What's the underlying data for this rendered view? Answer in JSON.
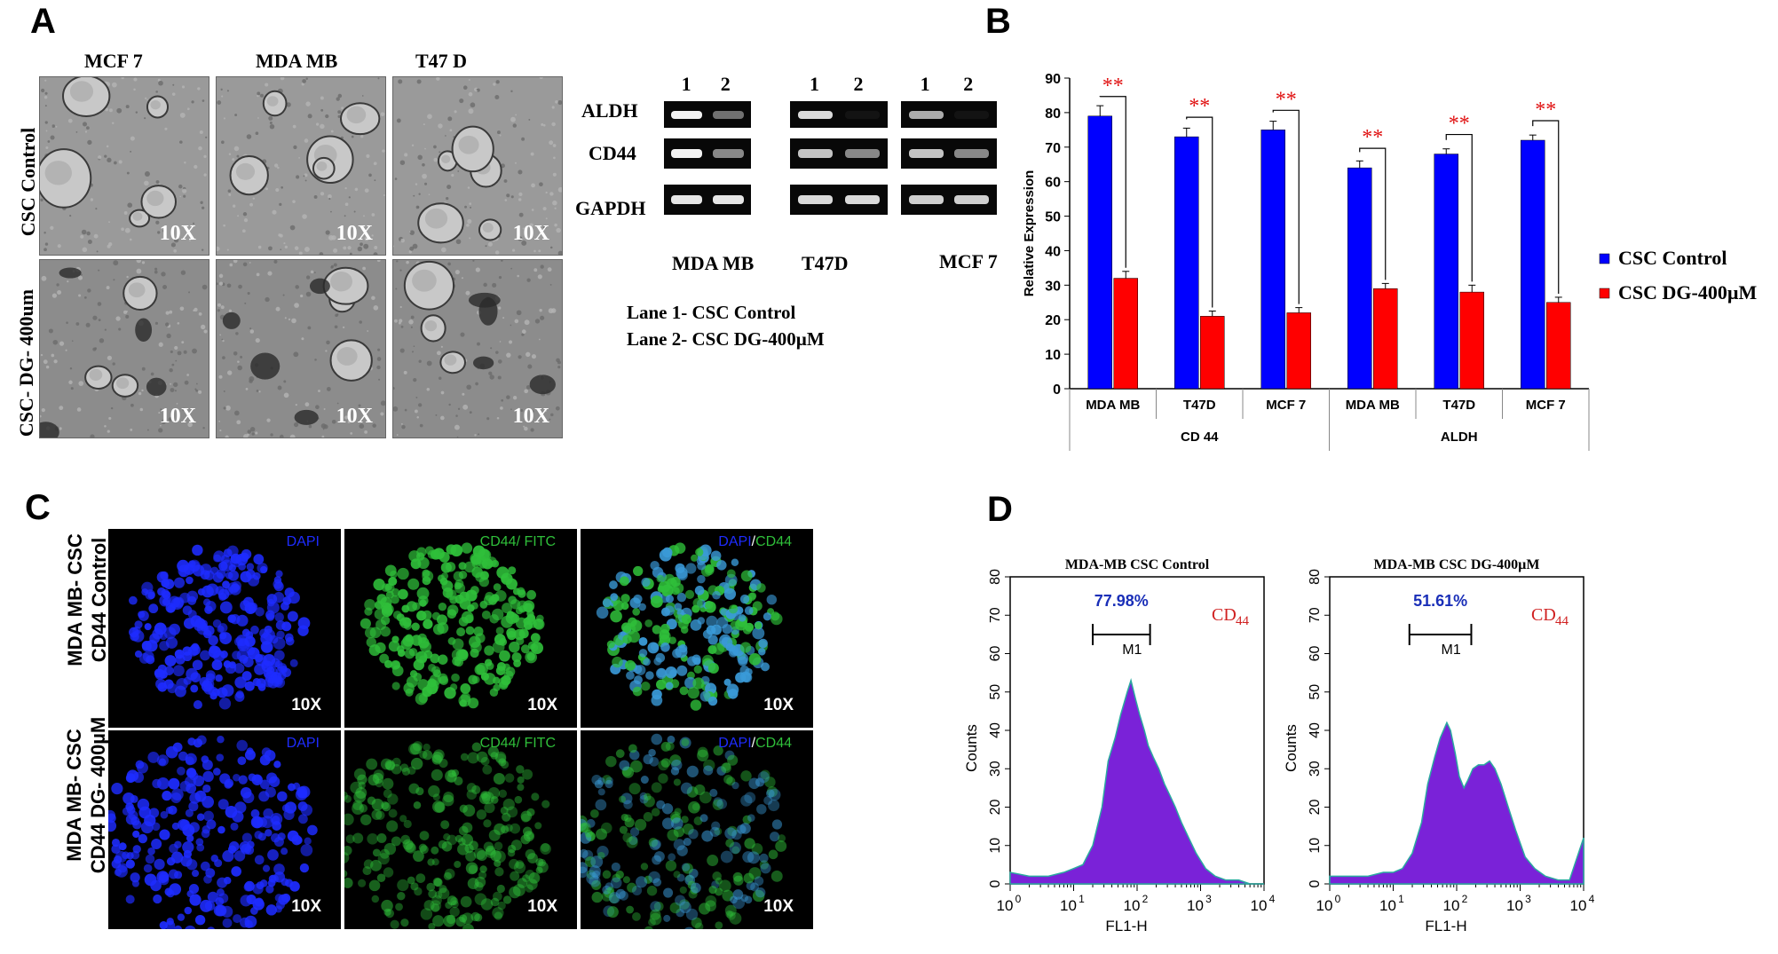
{
  "panels": {
    "a": "A",
    "b": "B",
    "c": "C",
    "d": "D"
  },
  "panel_a": {
    "columns": [
      "MCF 7",
      "MDA MB",
      "T47 D"
    ],
    "rows": [
      "CSC Control",
      "CSC- DG- 400um"
    ],
    "magnification": "10X",
    "gel_rows": [
      "ALDH",
      "CD44",
      "GAPDH"
    ],
    "lanes": [
      "1",
      "2"
    ],
    "gel_groups": [
      "MDA MB",
      "T47D",
      "MCF 7"
    ],
    "legend_1": "Lane 1- CSC Control",
    "legend_2": "Lane 2- CSC DG-400µM"
  },
  "chart_data": [
    {
      "type": "bar",
      "ylabel": "Relative Expression",
      "ylim": [
        0,
        90
      ],
      "yticks": [
        "0",
        "10",
        "20",
        "30",
        "40",
        "50",
        "60",
        "70",
        "80",
        "90"
      ],
      "categories": [
        "MDA MB",
        "T47D",
        "MCF 7",
        "MDA MB",
        "T47D",
        "MCF 7"
      ],
      "groups": [
        "CD 44",
        "ALDH"
      ],
      "series": [
        {
          "name": "CSC Control",
          "color": "#0000ff",
          "values": [
            79,
            73,
            75,
            64,
            68,
            72
          ],
          "errors": [
            3,
            2.5,
            2.5,
            2,
            1.5,
            1.5
          ]
        },
        {
          "name": "CSC DG-400µM",
          "color": "#ff0000",
          "values": [
            32,
            21,
            22,
            29,
            28,
            25
          ],
          "errors": [
            2,
            1.5,
            1.5,
            1.5,
            2,
            1.5
          ]
        }
      ],
      "significance": "**",
      "legend": "right",
      "grid": false
    },
    {
      "type": "area",
      "title": "MDA-MB CSC Control",
      "xlabel": "FL1-H",
      "ylabel": "Counts",
      "ylim": [
        0,
        80
      ],
      "yticks": [
        "0",
        "10",
        "20",
        "30",
        "40",
        "50",
        "60",
        "70",
        "80"
      ],
      "xticks": [
        "10",
        "10",
        "10",
        "10",
        "10"
      ],
      "xtick_exponents": [
        "0",
        "1",
        "2",
        "3",
        "4"
      ],
      "marker_label": "M1",
      "percentage": "77.98%",
      "marker_name": "CD",
      "marker_sub": "44",
      "gate": [
        20,
        160
      ],
      "x": [
        1,
        2,
        4,
        7,
        10,
        14,
        20,
        28,
        35,
        45,
        55,
        70,
        80,
        95,
        110,
        130,
        150,
        180,
        220,
        270,
        330,
        400,
        500,
        650,
        850,
        1200,
        1700,
        2500,
        4000,
        6000,
        10000
      ],
      "y": [
        3,
        2,
        2,
        3,
        4,
        5,
        10,
        20,
        32,
        38,
        44,
        50,
        53,
        48,
        44,
        40,
        36,
        33,
        30,
        26,
        23,
        20,
        16,
        12,
        8,
        4,
        2,
        1,
        1,
        0,
        0
      ]
    },
    {
      "type": "area",
      "title": "MDA-MB CSC DG-400µM",
      "xlabel": "FL1-H",
      "ylabel": "Counts",
      "ylim": [
        0,
        80
      ],
      "yticks": [
        "0",
        "10",
        "20",
        "30",
        "40",
        "50",
        "60",
        "70",
        "80"
      ],
      "xticks": [
        "10",
        "10",
        "10",
        "10",
        "10"
      ],
      "xtick_exponents": [
        "0",
        "1",
        "2",
        "3",
        "4"
      ],
      "marker_label": "M1",
      "percentage": "51.61%",
      "marker_name": "CD",
      "marker_sub": "44",
      "gate": [
        18,
        170
      ],
      "x": [
        1,
        2,
        4,
        7,
        10,
        14,
        20,
        28,
        35,
        45,
        55,
        70,
        80,
        95,
        110,
        130,
        150,
        180,
        220,
        270,
        330,
        400,
        500,
        650,
        850,
        1200,
        1700,
        2500,
        4000,
        6000,
        10000
      ],
      "y": [
        2,
        2,
        2,
        3,
        3,
        4,
        8,
        16,
        26,
        33,
        38,
        42,
        40,
        34,
        28,
        25,
        27,
        30,
        31,
        31,
        32,
        30,
        26,
        20,
        14,
        7,
        4,
        2,
        1,
        1,
        12
      ]
    }
  ],
  "panel_c": {
    "rows": [
      {
        "line1": "MDA MB- CSC",
        "line2": "CD44 Control"
      },
      {
        "line1": "MDA MB- CSC",
        "line2": "CD44 DG- 400µM"
      }
    ],
    "channel_dapi": "DAPI",
    "channel_cd44": "CD44/ FITC",
    "merge_dapi": "DAPI",
    "merge_sep": "/",
    "merge_cd44": "CD44",
    "magnification": "10X",
    "colors": {
      "dapi": "#1e2cff",
      "fitc": "#2fbf3a"
    }
  }
}
